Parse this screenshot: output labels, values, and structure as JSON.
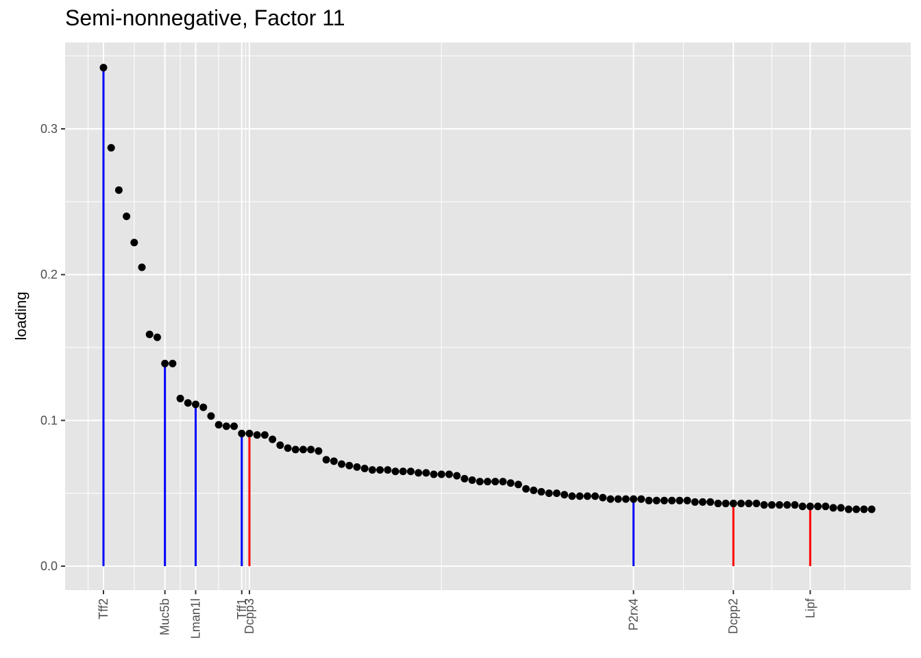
{
  "chart_data": {
    "type": "scatter",
    "title": "Semi-nonnegative, Factor 11",
    "xlabel": "",
    "ylabel": "loading",
    "ylim": [
      -0.0165,
      0.3435
    ],
    "y_ticks": [
      0.0,
      0.1,
      0.2,
      0.3
    ],
    "y_tick_labels": [
      "0.0",
      "0.1",
      "0.2",
      "0.3"
    ],
    "grid": true,
    "point_color": "#000000",
    "colors": {
      "blue": "#0000ff",
      "red": "#ff0000",
      "panel": "#e5e5e5",
      "grid": "#ffffff"
    },
    "x": [
      1,
      2,
      3,
      4,
      5,
      6,
      7,
      8,
      9,
      10,
      11,
      12,
      13,
      14,
      15,
      16,
      17,
      18,
      19,
      20,
      21,
      22,
      23,
      24,
      25,
      26,
      27,
      28,
      29,
      30,
      31,
      32,
      33,
      34,
      35,
      36,
      37,
      38,
      39,
      40,
      41,
      42,
      43,
      44,
      45,
      46,
      47,
      48,
      49,
      50,
      51,
      52,
      53,
      54,
      55,
      56,
      57,
      58,
      59,
      60,
      61,
      62,
      63,
      64,
      65,
      66,
      67,
      68,
      69,
      70,
      71,
      72,
      73,
      74,
      75,
      76,
      77,
      78,
      79,
      80,
      81,
      82,
      83,
      84,
      85,
      86,
      87,
      88,
      89,
      90,
      91,
      92,
      93,
      94,
      95,
      96,
      97,
      98,
      99,
      100,
      101
    ],
    "values": [
      0.342,
      0.287,
      0.258,
      0.24,
      0.222,
      0.205,
      0.159,
      0.157,
      0.139,
      0.139,
      0.115,
      0.112,
      0.111,
      0.109,
      0.103,
      0.097,
      0.096,
      0.096,
      0.091,
      0.091,
      0.09,
      0.09,
      0.087,
      0.083,
      0.081,
      0.08,
      0.08,
      0.08,
      0.079,
      0.073,
      0.072,
      0.07,
      0.069,
      0.068,
      0.067,
      0.066,
      0.066,
      0.066,
      0.065,
      0.065,
      0.065,
      0.064,
      0.064,
      0.063,
      0.063,
      0.063,
      0.062,
      0.06,
      0.059,
      0.058,
      0.058,
      0.058,
      0.058,
      0.057,
      0.056,
      0.053,
      0.052,
      0.051,
      0.05,
      0.05,
      0.049,
      0.048,
      0.048,
      0.048,
      0.048,
      0.047,
      0.046,
      0.046,
      0.046,
      0.046,
      0.046,
      0.045,
      0.045,
      0.045,
      0.045,
      0.045,
      0.045,
      0.044,
      0.044,
      0.044,
      0.043,
      0.043,
      0.043,
      0.043,
      0.043,
      0.043,
      0.042,
      0.042,
      0.042,
      0.042,
      0.042,
      0.041,
      0.041,
      0.041,
      0.041,
      0.04,
      0.04,
      0.039,
      0.039,
      0.039,
      0.039
    ],
    "highlights": [
      {
        "x": 1,
        "label": "Tff2",
        "color": "blue"
      },
      {
        "x": 9,
        "label": "Muc5b",
        "color": "blue"
      },
      {
        "x": 13,
        "label": "Lman1l",
        "color": "blue"
      },
      {
        "x": 19,
        "label": "Tff1",
        "color": "blue"
      },
      {
        "x": 20,
        "label": "Dcpp3",
        "color": "red"
      },
      {
        "x": 70,
        "label": "P2rx4",
        "color": "blue"
      },
      {
        "x": 83,
        "label": "Dcpp2",
        "color": "red"
      },
      {
        "x": 93,
        "label": "Lipf",
        "color": "red"
      }
    ]
  }
}
